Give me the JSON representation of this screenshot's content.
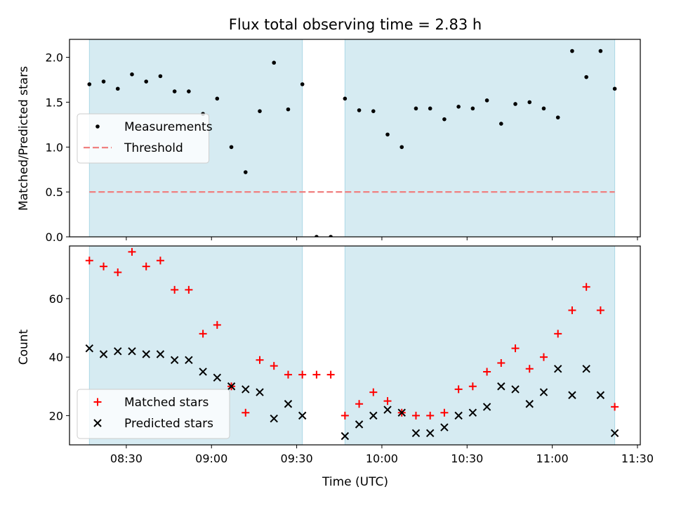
{
  "chart_data": {
    "title": "Flux total observing time = 2.83 h",
    "xlabel": "Time (UTC)",
    "x_unit": "time (UTC, HH:MM)",
    "xlim": [
      "08:10",
      "11:31"
    ],
    "x_ticks": [
      "08:30",
      "09:00",
      "09:30",
      "10:00",
      "10:30",
      "11:00",
      "11:30"
    ],
    "shaded_intervals": [
      [
        "08:17",
        "09:32"
      ],
      [
        "09:47",
        "11:22"
      ]
    ],
    "colors": {
      "shade": "#add8e6",
      "measure": "#000000",
      "threshold": "#f08080",
      "matched": "#ff0000",
      "predicted": "#000000"
    },
    "panels": [
      {
        "type": "scatter",
        "ylabel": "Matched/Predicted stars",
        "ylim": [
          0,
          2.2
        ],
        "y_ticks": [
          "0.0",
          "0.5",
          "1.0",
          "1.5",
          "2.0"
        ],
        "legend_position": "center-left",
        "threshold": {
          "name": "Threshold",
          "value": 0.5,
          "x_range": [
            "08:17",
            "11:22"
          ]
        },
        "series": [
          {
            "name": "Measurements",
            "marker": "dot",
            "x": [
              "08:17",
              "08:22",
              "08:27",
              "08:32",
              "08:37",
              "08:42",
              "08:47",
              "08:52",
              "08:57",
              "09:02",
              "09:07",
              "09:12",
              "09:17",
              "09:22",
              "09:27",
              "09:32",
              "09:37",
              "09:42",
              "09:47",
              "09:52",
              "09:57",
              "10:02",
              "10:07",
              "10:12",
              "10:17",
              "10:22",
              "10:27",
              "10:32",
              "10:37",
              "10:42",
              "10:47",
              "10:52",
              "10:57",
              "11:02",
              "11:07",
              "11:12",
              "11:17",
              "11:22"
            ],
            "y": [
              1.7,
              1.73,
              1.65,
              1.81,
              1.73,
              1.79,
              1.62,
              1.62,
              1.37,
              1.54,
              1.0,
              0.72,
              1.4,
              1.94,
              1.42,
              1.7,
              0.0,
              0.0,
              1.54,
              1.41,
              1.4,
              1.14,
              1.0,
              1.43,
              1.43,
              1.31,
              1.45,
              1.43,
              1.52,
              1.26,
              1.48,
              1.5,
              1.43,
              1.33,
              2.07,
              1.78,
              2.07,
              1.65
            ]
          }
        ]
      },
      {
        "type": "scatter",
        "ylabel": "Count",
        "ylim": [
          10,
          78
        ],
        "y_ticks": [
          "20",
          "40",
          "60"
        ],
        "legend_position": "lower-left",
        "series": [
          {
            "name": "Matched stars",
            "marker": "plus",
            "x": [
              "08:17",
              "08:22",
              "08:27",
              "08:32",
              "08:37",
              "08:42",
              "08:47",
              "08:52",
              "08:57",
              "09:02",
              "09:07",
              "09:12",
              "09:17",
              "09:22",
              "09:27",
              "09:32",
              "09:37",
              "09:42",
              "09:47",
              "09:52",
              "09:57",
              "10:02",
              "10:07",
              "10:12",
              "10:17",
              "10:22",
              "10:27",
              "10:32",
              "10:37",
              "10:42",
              "10:47",
              "10:52",
              "10:57",
              "11:02",
              "11:07",
              "11:12",
              "11:17",
              "11:22"
            ],
            "y": [
              73,
              71,
              69,
              76,
              71,
              73,
              63,
              63,
              48,
              51,
              30,
              21,
              39,
              37,
              34,
              34,
              34,
              34,
              20,
              24,
              28,
              25,
              21,
              20,
              20,
              21,
              29,
              30,
              35,
              38,
              43,
              36,
              40,
              48,
              56,
              64,
              56,
              23
            ]
          },
          {
            "name": "Predicted stars",
            "marker": "x",
            "x": [
              "08:17",
              "08:22",
              "08:27",
              "08:32",
              "08:37",
              "08:42",
              "08:47",
              "08:52",
              "08:57",
              "09:02",
              "09:07",
              "09:12",
              "09:17",
              "09:22",
              "09:27",
              "09:32",
              "09:47",
              "09:52",
              "09:57",
              "10:02",
              "10:07",
              "10:12",
              "10:17",
              "10:22",
              "10:27",
              "10:32",
              "10:37",
              "10:42",
              "10:47",
              "10:52",
              "10:57",
              "11:02",
              "11:07",
              "11:12",
              "11:17",
              "11:22"
            ],
            "y": [
              43,
              41,
              42,
              42,
              41,
              41,
              39,
              39,
              35,
              33,
              30,
              29,
              28,
              19,
              24,
              20,
              13,
              17,
              20,
              22,
              21,
              14,
              14,
              16,
              20,
              21,
              23,
              30,
              29,
              24,
              28,
              36,
              27,
              36,
              27,
              14
            ]
          }
        ]
      }
    ]
  }
}
